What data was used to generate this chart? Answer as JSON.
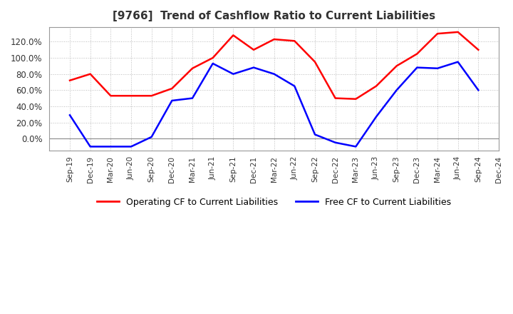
{
  "title": "[9766]  Trend of Cashflow Ratio to Current Liabilities",
  "title_fontsize": 11,
  "background_color": "#ffffff",
  "plot_bg_color": "#ffffff",
  "grid_color": "#bbbbbb",
  "x_labels": [
    "Sep-19",
    "Dec-19",
    "Mar-20",
    "Jun-20",
    "Sep-20",
    "Dec-20",
    "Mar-21",
    "Jun-21",
    "Sep-21",
    "Dec-21",
    "Mar-22",
    "Jun-22",
    "Sep-22",
    "Dec-22",
    "Mar-23",
    "Jun-23",
    "Sep-23",
    "Dec-23",
    "Mar-24",
    "Jun-24",
    "Sep-24",
    "Dec-24"
  ],
  "operating_cf": [
    0.72,
    0.8,
    0.53,
    0.53,
    0.53,
    0.62,
    0.87,
    1.0,
    1.28,
    1.1,
    1.23,
    1.21,
    0.95,
    0.5,
    0.49,
    0.65,
    0.9,
    1.05,
    1.3,
    1.32,
    1.1,
    null
  ],
  "free_cf": [
    0.29,
    -0.1,
    -0.1,
    -0.1,
    0.02,
    0.47,
    0.5,
    0.93,
    0.8,
    0.88,
    0.8,
    0.65,
    0.05,
    -0.05,
    -0.1,
    0.27,
    0.6,
    0.88,
    0.87,
    0.95,
    0.6,
    null
  ],
  "operating_color": "#ff0000",
  "free_color": "#0000ff",
  "ylim": [
    -0.15,
    1.38
  ],
  "yticks": [
    0.0,
    0.2,
    0.4,
    0.6,
    0.8,
    1.0,
    1.2
  ],
  "legend_labels": [
    "Operating CF to Current Liabilities",
    "Free CF to Current Liabilities"
  ]
}
